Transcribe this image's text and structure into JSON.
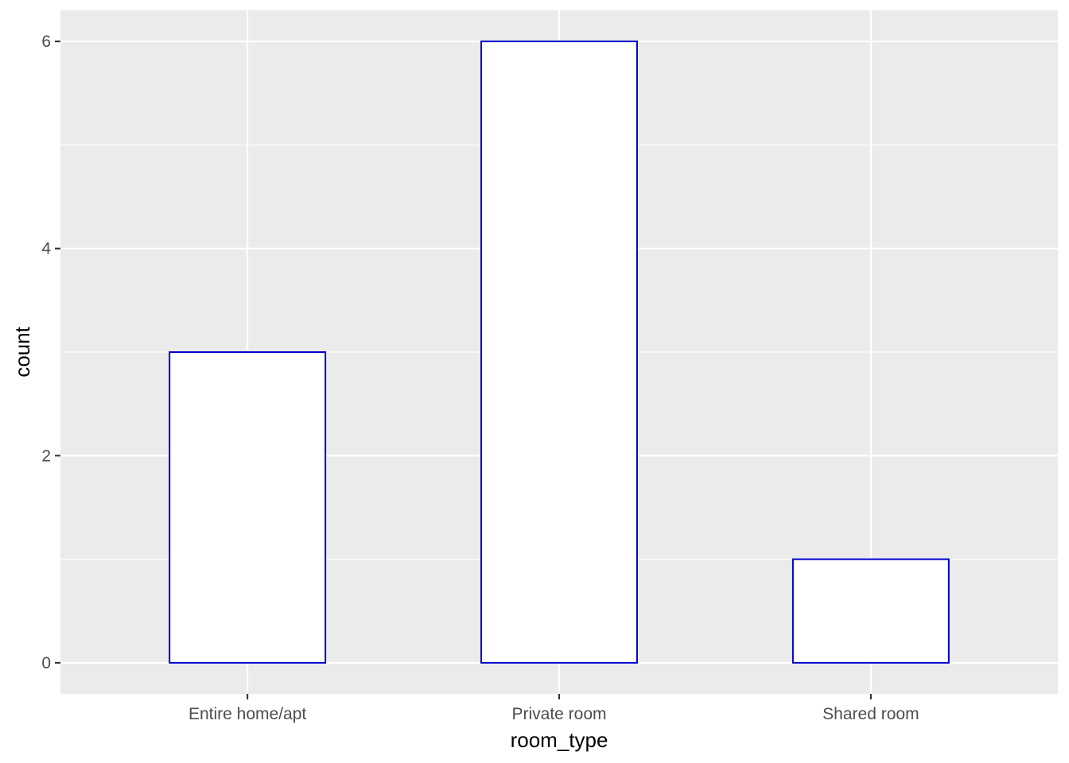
{
  "chart_data": {
    "type": "bar",
    "categories": [
      "Entire home/apt",
      "Private room",
      "Shared room"
    ],
    "values": [
      3,
      6,
      1
    ],
    "xlabel": "room_type",
    "ylabel": "count",
    "ylim": [
      -0.3,
      6.3
    ],
    "yticks": [
      0,
      2,
      4,
      6
    ],
    "grid": true,
    "legend": "none",
    "colors": {
      "panel_background": "#ebebeb",
      "grid": "#ffffff",
      "bar_fill": "#ffffff",
      "bar_outline": "#0000cc",
      "tick": "#333333",
      "tick_label": "#4d4d4d",
      "axis_title": "#000000"
    }
  }
}
